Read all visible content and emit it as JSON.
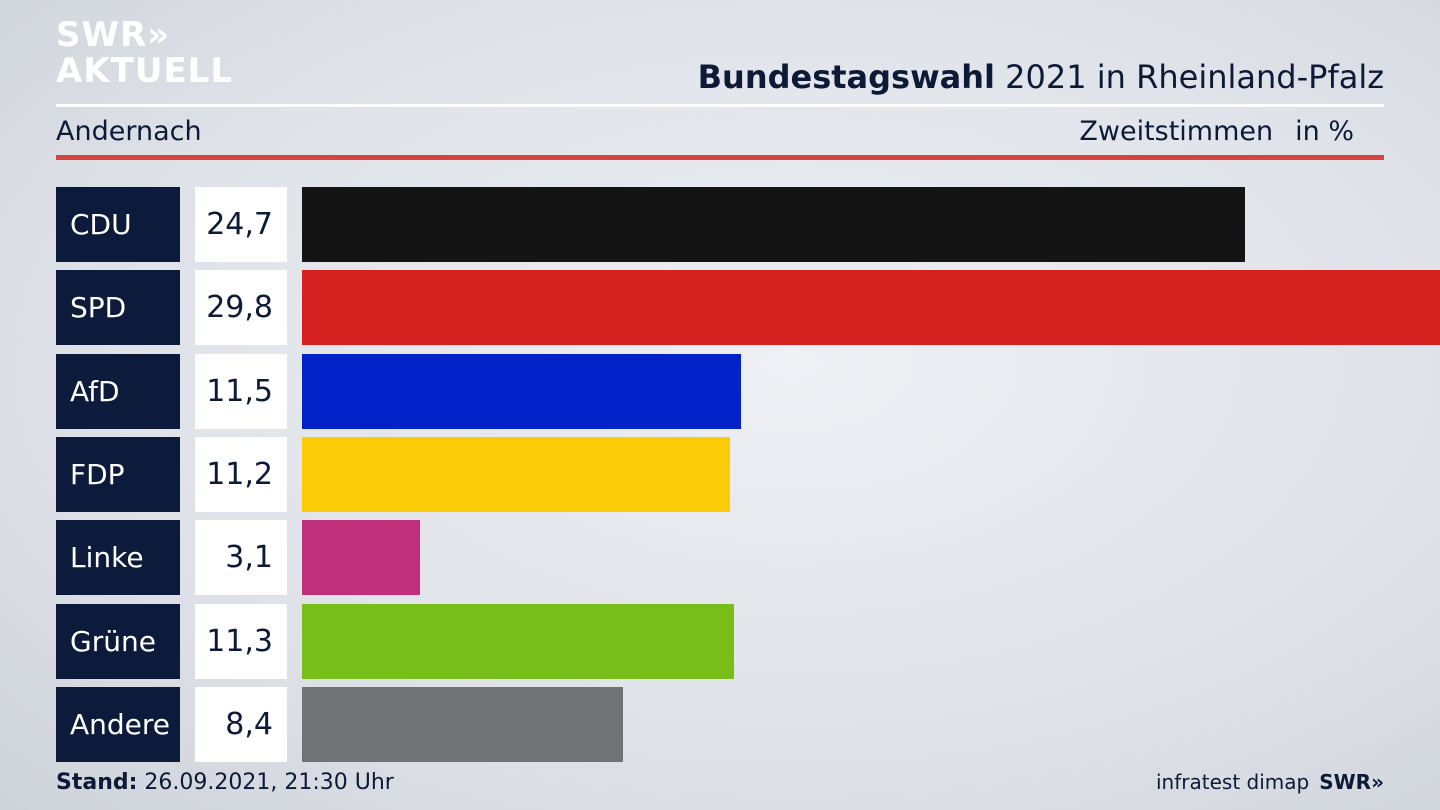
{
  "brand": {
    "line1": "SWR»",
    "line2": "AKTUELL",
    "footer_logo": "SWR»",
    "source": "infratest dimap"
  },
  "header": {
    "title_bold": "Bundestagswahl",
    "title_rest": " 2021 in Rheinland-Pfalz"
  },
  "subheader": {
    "region": "Andernach",
    "measure": "Zweitstimmen",
    "unit": "in %"
  },
  "footer": {
    "stand_label": "Stand:",
    "stand_value": " 26.09.2021, 21:30 Uhr"
  },
  "chart_data": {
    "type": "bar",
    "orientation": "horizontal",
    "categories": [
      "CDU",
      "SPD",
      "AfD",
      "FDP",
      "Linke",
      "Grüne",
      "Andere"
    ],
    "values": [
      24.7,
      29.8,
      11.5,
      11.2,
      3.1,
      11.3,
      8.4
    ],
    "value_labels": [
      "24,7",
      "29,8",
      "11,5",
      "11,2",
      "3,1",
      "11,3",
      "8,4"
    ],
    "colors": [
      "#141414",
      "#d52020",
      "#0022c8",
      "#fccb08",
      "#c0307a",
      "#78be1a",
      "#717274"
    ],
    "xlim": [
      0,
      29.8
    ],
    "grid": false
  }
}
